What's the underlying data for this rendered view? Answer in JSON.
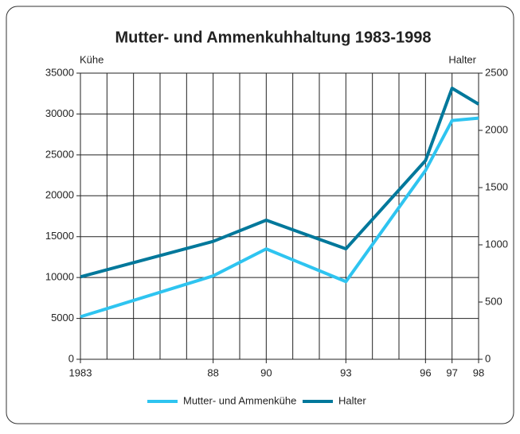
{
  "chart_data": {
    "type": "line",
    "title": "Mutter- und Ammenkuhhaltung 1983-1998",
    "y_label": "Kühe",
    "y2_label": "Halter",
    "x": [
      1983,
      1988,
      1990,
      1993,
      1996,
      1997,
      1998
    ],
    "xlim": [
      1983,
      1998
    ],
    "xticks": [
      {
        "value": 1983,
        "label": "1983"
      },
      {
        "value": 1988,
        "label": "88"
      },
      {
        "value": 1990,
        "label": "90"
      },
      {
        "value": 1993,
        "label": "93"
      },
      {
        "value": 1996,
        "label": "96"
      },
      {
        "value": 1997,
        "label": "97"
      },
      {
        "value": 1998,
        "label": "98"
      }
    ],
    "xgrid": [
      1983,
      1984,
      1985,
      1986,
      1987,
      1988,
      1989,
      1990,
      1991,
      1992,
      1993,
      1994,
      1995,
      1996,
      1997,
      1998
    ],
    "ylim": [
      0,
      35000
    ],
    "yticks": [
      0,
      5000,
      10000,
      15000,
      20000,
      25000,
      30000,
      35000
    ],
    "y2lim": [
      0,
      2500
    ],
    "y2ticks": [
      0,
      500,
      1000,
      1500,
      2000,
      2500
    ],
    "series": [
      {
        "name": "Mutter- und Ammenkühe",
        "color": "#2ec4f0",
        "values": [
          5200,
          10200,
          13500,
          9500,
          23100,
          29200,
          29500
        ]
      },
      {
        "name": "Halter",
        "color": "#00789b",
        "axis": "y2",
        "values": [
          720,
          1030,
          1215,
          965,
          1736,
          2368,
          2229
        ]
      }
    ]
  }
}
